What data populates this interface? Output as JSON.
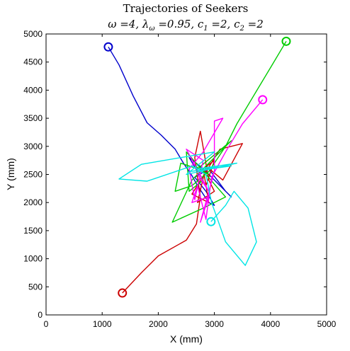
{
  "chart_data": {
    "type": "line",
    "title": "Trajectories of Seekers",
    "subtitle": "ω =4, λω =0.95, c1 =2, c2 =2",
    "subtitle_parts": {
      "omega": "ω =4,",
      "lambda": "λ",
      "lambda_sub": "ω",
      "lambda_val": " =0.95,",
      "c1": "c",
      "c1_sub": "1",
      "c1_val": " =2,",
      "c2": "c",
      "c2_sub": "2",
      "c2_val": " =2"
    },
    "xlabel": "X (mm)",
    "ylabel": "Y (mm)",
    "xlim": [
      0,
      5000
    ],
    "ylim": [
      0,
      5000
    ],
    "xticks": [
      "0",
      "1000",
      "2000",
      "3000",
      "4000",
      "5000"
    ],
    "yticks": [
      "0",
      "500",
      "1000",
      "1500",
      "2000",
      "2500",
      "3000",
      "3500",
      "4000",
      "4500",
      "5000"
    ],
    "grid": false,
    "legend": "none",
    "series": [
      {
        "color": "#0000cc",
        "start": [
          1110,
          4770
        ],
        "points": [
          [
            1110,
            4770
          ],
          [
            1300,
            4450
          ],
          [
            1550,
            3900
          ],
          [
            1800,
            3420
          ],
          [
            2050,
            3200
          ],
          [
            2300,
            2950
          ],
          [
            2450,
            2700
          ],
          [
            2600,
            2480
          ],
          [
            2700,
            2300
          ],
          [
            2800,
            2150
          ],
          [
            2900,
            2000
          ],
          [
            3000,
            1950
          ],
          [
            2850,
            2200
          ],
          [
            2650,
            2450
          ],
          [
            2900,
            2600
          ],
          [
            3200,
            2200
          ],
          [
            3300,
            2100
          ],
          [
            2800,
            2600
          ],
          [
            2550,
            2800
          ],
          [
            2700,
            2550
          ]
        ]
      },
      {
        "color": "#cc0000",
        "start": [
          1360,
          390
        ],
        "points": [
          [
            1360,
            390
          ],
          [
            1700,
            750
          ],
          [
            2000,
            1050
          ],
          [
            2500,
            1330
          ],
          [
            2680,
            1620
          ],
          [
            2750,
            2100
          ],
          [
            2650,
            2800
          ],
          [
            2750,
            3270
          ],
          [
            2900,
            2400
          ],
          [
            3000,
            2200
          ],
          [
            2700,
            2000
          ],
          [
            2850,
            2650
          ],
          [
            3150,
            2400
          ],
          [
            3500,
            3050
          ],
          [
            3100,
            2950
          ],
          [
            2600,
            2150
          ],
          [
            2900,
            2000
          ],
          [
            2800,
            2600
          ],
          [
            3000,
            2750
          ],
          [
            2850,
            2300
          ]
        ]
      },
      {
        "color": "#00cc00",
        "start": [
          4280,
          4870
        ],
        "points": [
          [
            4280,
            4870
          ],
          [
            4000,
            4400
          ],
          [
            3700,
            3900
          ],
          [
            3400,
            3400
          ],
          [
            3200,
            3000
          ],
          [
            2900,
            2550
          ],
          [
            2600,
            2300
          ],
          [
            2300,
            2200
          ],
          [
            2400,
            2700
          ],
          [
            2700,
            2600
          ],
          [
            3300,
            3100
          ],
          [
            2600,
            2400
          ],
          [
            2250,
            1650
          ],
          [
            2800,
            1900
          ],
          [
            3200,
            2100
          ],
          [
            2500,
            2900
          ],
          [
            2550,
            2200
          ],
          [
            2800,
            2400
          ],
          [
            2650,
            2650
          ],
          [
            2900,
            2500
          ]
        ]
      },
      {
        "color": "#ff00ff",
        "start": [
          3860,
          3830
        ],
        "points": [
          [
            3860,
            3830
          ],
          [
            3500,
            3400
          ],
          [
            3200,
            2900
          ],
          [
            2950,
            2450
          ],
          [
            2850,
            1700
          ],
          [
            2700,
            2300
          ],
          [
            2600,
            2000
          ],
          [
            2900,
            2100
          ],
          [
            2750,
            1650
          ],
          [
            3000,
            2550
          ],
          [
            3000,
            3450
          ],
          [
            3150,
            3500
          ],
          [
            2800,
            2900
          ],
          [
            2550,
            2600
          ],
          [
            2650,
            2050
          ],
          [
            2800,
            2750
          ],
          [
            2500,
            2950
          ],
          [
            2900,
            2200
          ],
          [
            2700,
            2500
          ],
          [
            2800,
            2350
          ]
        ]
      },
      {
        "color": "#00e5e5",
        "start": [
          2940,
          1660
        ],
        "points": [
          [
            2940,
            1660
          ],
          [
            3200,
            1950
          ],
          [
            3350,
            2200
          ],
          [
            3600,
            1900
          ],
          [
            3750,
            1300
          ],
          [
            3550,
            880
          ],
          [
            3200,
            1300
          ],
          [
            2950,
            2000
          ],
          [
            2850,
            2500
          ],
          [
            2600,
            2650
          ],
          [
            1800,
            2380
          ],
          [
            1300,
            2420
          ],
          [
            1700,
            2680
          ],
          [
            2400,
            2800
          ],
          [
            3000,
            2900
          ],
          [
            2500,
            2500
          ],
          [
            3400,
            2700
          ],
          [
            2700,
            2600
          ],
          [
            3300,
            2650
          ],
          [
            2550,
            2550
          ]
        ]
      }
    ]
  }
}
